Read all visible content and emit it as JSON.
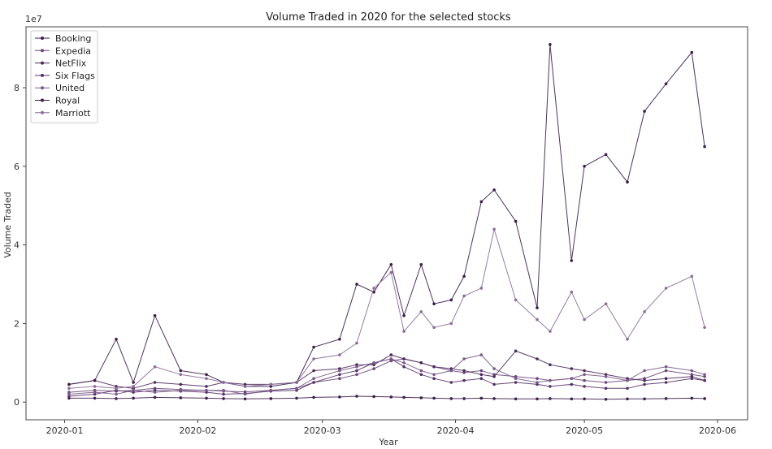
{
  "chart_data": {
    "type": "line",
    "title": "Volume Traded in 2020 for the selected stocks",
    "xlabel": "Year",
    "ylabel": "Volume Traded",
    "y_offset_label": "1e7",
    "x_ticks": [
      "2020-01",
      "2020-02",
      "2020-03",
      "2020-04",
      "2020-05",
      "2020-06"
    ],
    "y_ticks": [
      "0",
      "2",
      "4",
      "6",
      "8"
    ],
    "xlim": [
      "2019-12-23",
      "2020-06-08"
    ],
    "ylim": [
      -0.45,
      9.55
    ],
    "grid": false,
    "legend_position": "top-left",
    "x": [
      "2020-01-02",
      "2020-01-08",
      "2020-01-13",
      "2020-01-17",
      "2020-01-22",
      "2020-01-28",
      "2020-02-03",
      "2020-02-07",
      "2020-02-12",
      "2020-02-18",
      "2020-02-24",
      "2020-02-28",
      "2020-03-05",
      "2020-03-09",
      "2020-03-13",
      "2020-03-17",
      "2020-03-20",
      "2020-03-24",
      "2020-03-27",
      "2020-03-31",
      "2020-04-03",
      "2020-04-07",
      "2020-04-10",
      "2020-04-15",
      "2020-04-20",
      "2020-04-23",
      "2020-04-28",
      "2020-05-01",
      "2020-05-06",
      "2020-05-11",
      "2020-05-15",
      "2020-05-20",
      "2020-05-26",
      "2020-05-29"
    ],
    "series": [
      {
        "name": "Booking",
        "color": "#3d1f4d",
        "values": [
          0.1,
          0.1,
          0.09,
          0.1,
          0.12,
          0.11,
          0.1,
          0.09,
          0.08,
          0.09,
          0.1,
          0.12,
          0.13,
          0.15,
          0.14,
          0.13,
          0.12,
          0.11,
          0.1,
          0.09,
          0.09,
          0.1,
          0.09,
          0.08,
          0.08,
          0.09,
          0.08,
          0.08,
          0.07,
          0.08,
          0.08,
          0.09,
          0.1,
          0.09
        ]
      },
      {
        "name": "Expedia",
        "color": "#6b4a7a",
        "values": [
          0.25,
          0.3,
          0.28,
          0.3,
          0.35,
          0.32,
          0.3,
          0.28,
          0.26,
          0.3,
          0.35,
          0.5,
          0.6,
          0.7,
          0.85,
          1.05,
          1.1,
          1.0,
          0.9,
          0.8,
          0.75,
          0.8,
          0.7,
          0.65,
          0.6,
          0.55,
          0.6,
          0.55,
          0.5,
          0.55,
          0.6,
          0.8,
          0.7,
          0.65
        ]
      },
      {
        "name": "NetFlix",
        "color": "#4b2a5c",
        "values": [
          0.45,
          0.55,
          0.4,
          0.35,
          0.5,
          0.45,
          0.4,
          0.5,
          0.45,
          0.45,
          0.5,
          0.8,
          0.85,
          0.95,
          0.95,
          1.2,
          1.1,
          1.0,
          0.9,
          0.85,
          0.8,
          0.7,
          0.65,
          1.3,
          1.1,
          0.95,
          0.85,
          0.8,
          0.7,
          0.6,
          0.55,
          0.6,
          0.65,
          0.55
        ]
      },
      {
        "name": "Six Flags",
        "color": "#553366",
        "values": [
          0.15,
          0.2,
          0.3,
          0.25,
          0.3,
          0.28,
          0.25,
          0.2,
          0.22,
          0.28,
          0.3,
          0.5,
          0.7,
          0.8,
          1.0,
          1.1,
          0.9,
          0.7,
          0.6,
          0.5,
          0.55,
          0.6,
          0.45,
          0.5,
          0.45,
          0.4,
          0.45,
          0.4,
          0.35,
          0.35,
          0.45,
          0.5,
          0.6,
          0.55
        ]
      },
      {
        "name": "United",
        "color": "#7a5a8a",
        "values": [
          0.2,
          0.25,
          0.2,
          0.3,
          0.25,
          0.3,
          0.3,
          0.3,
          0.2,
          0.3,
          0.35,
          0.6,
          0.8,
          0.9,
          1.0,
          1.1,
          1.0,
          0.8,
          0.7,
          0.8,
          1.1,
          1.2,
          0.85,
          0.6,
          0.5,
          0.55,
          0.6,
          0.7,
          0.65,
          0.55,
          0.8,
          0.9,
          0.8,
          0.7
        ]
      },
      {
        "name": "Royal",
        "color": "#3b1d4a",
        "values": [
          0.45,
          0.55,
          1.6,
          0.5,
          2.2,
          0.8,
          0.7,
          0.5,
          0.4,
          0.4,
          0.5,
          1.4,
          1.6,
          3.0,
          2.8,
          3.5,
          2.2,
          3.5,
          2.5,
          2.6,
          3.2,
          5.1,
          5.4,
          4.6,
          2.4,
          9.1,
          3.6,
          6.0,
          6.3,
          5.6,
          7.4,
          8.1,
          8.9,
          6.5
        ]
      },
      {
        "name": "Marriott",
        "color": "#8c6e99",
        "values": [
          0.35,
          0.4,
          0.35,
          0.4,
          0.9,
          0.7,
          0.6,
          0.5,
          0.4,
          0.45,
          0.5,
          1.1,
          1.2,
          1.5,
          2.9,
          3.3,
          1.8,
          2.3,
          1.9,
          2.0,
          2.7,
          2.9,
          4.4,
          2.6,
          2.1,
          1.8,
          2.8,
          2.1,
          2.5,
          1.6,
          2.3,
          2.9,
          3.2,
          1.9
        ]
      }
    ]
  }
}
